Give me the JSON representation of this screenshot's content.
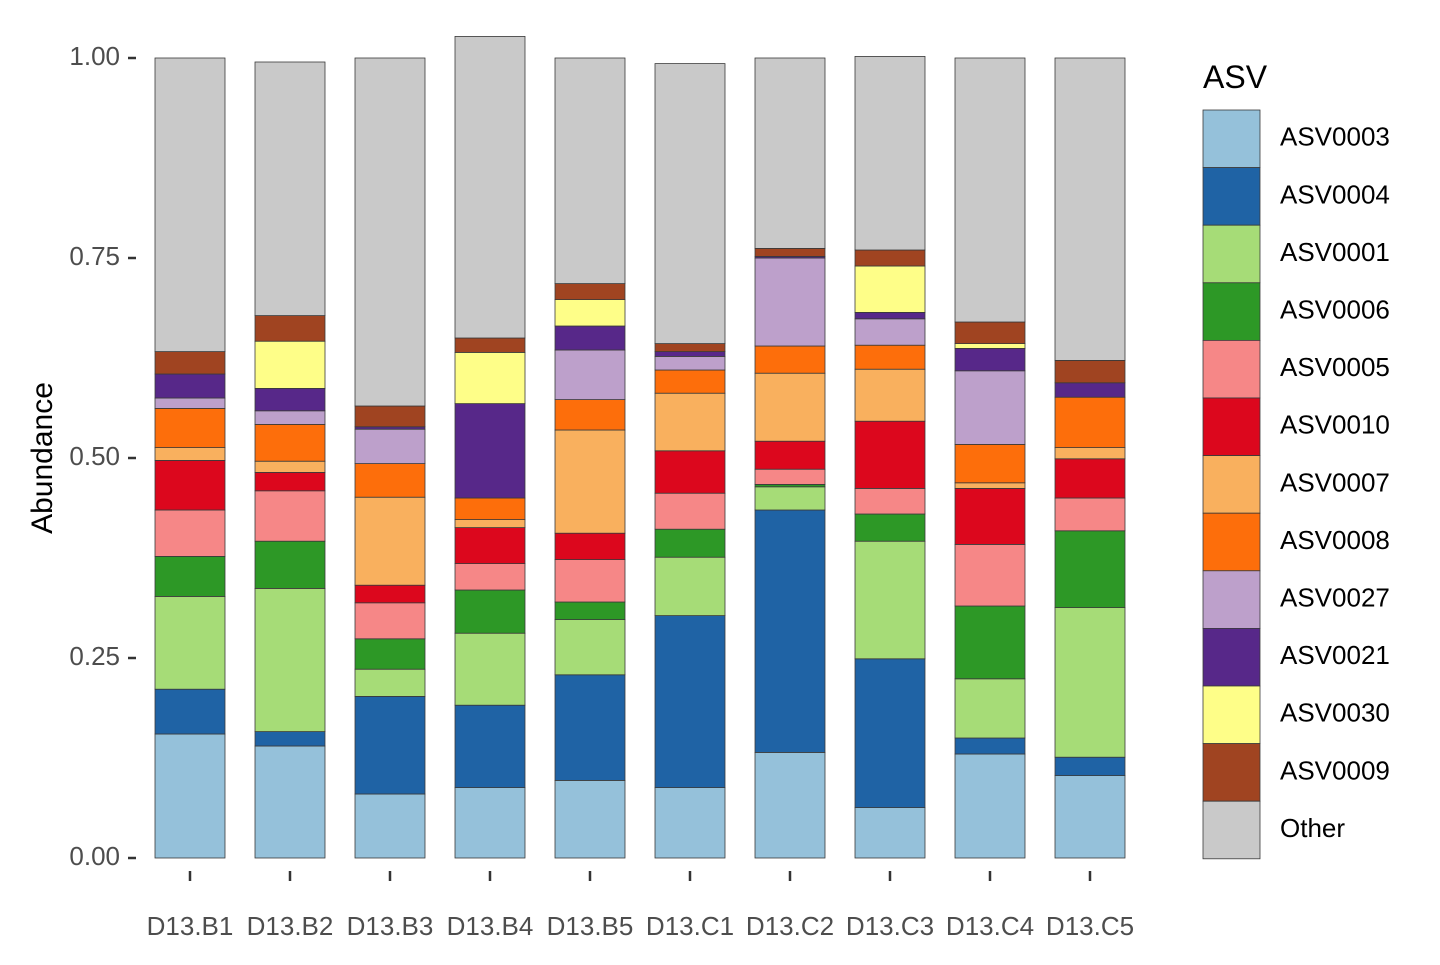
{
  "chart_data": {
    "type": "bar",
    "stacked": true,
    "ylabel": "Abundance",
    "xlabel": "",
    "ylim": [
      0,
      1
    ],
    "yticks": [
      "0.00",
      "0.25",
      "0.50",
      "0.75",
      "1.00"
    ],
    "grid": false,
    "legend_title": "ASV",
    "legend_position": "right",
    "categories": [
      "D13.B1",
      "D13.B2",
      "D13.B3",
      "D13.B4",
      "D13.B5",
      "D13.C1",
      "D13.C2",
      "D13.C3",
      "D13.C4",
      "D13.C5"
    ],
    "series": [
      {
        "name": "ASV0003",
        "color": "#95c1da",
        "values": [
          0.155,
          0.14,
          0.08,
          0.088,
          0.097,
          0.088,
          0.132,
          0.063,
          0.13,
          0.103
        ]
      },
      {
        "name": "ASV0004",
        "color": "#1f63a5",
        "values": [
          0.056,
          0.018,
          0.122,
          0.103,
          0.132,
          0.215,
          0.303,
          0.186,
          0.02,
          0.023
        ]
      },
      {
        "name": "ASV0001",
        "color": "#a6dc77",
        "values": [
          0.116,
          0.179,
          0.034,
          0.09,
          0.069,
          0.073,
          0.029,
          0.147,
          0.074,
          0.187
        ]
      },
      {
        "name": "ASV0006",
        "color": "#2d9826",
        "values": [
          0.05,
          0.059,
          0.038,
          0.054,
          0.022,
          0.035,
          0.003,
          0.034,
          0.091,
          0.096
        ]
      },
      {
        "name": "ASV0005",
        "color": "#f68787",
        "values": [
          0.058,
          0.063,
          0.045,
          0.033,
          0.053,
          0.045,
          0.019,
          0.032,
          0.077,
          0.041
        ]
      },
      {
        "name": "ASV0010",
        "color": "#dc071d",
        "values": [
          0.062,
          0.023,
          0.022,
          0.045,
          0.033,
          0.053,
          0.035,
          0.084,
          0.07,
          0.049
        ]
      },
      {
        "name": "ASV0007",
        "color": "#f9b05e",
        "values": [
          0.016,
          0.014,
          0.11,
          0.01,
          0.129,
          0.072,
          0.085,
          0.065,
          0.007,
          0.014
        ]
      },
      {
        "name": "ASV0008",
        "color": "#fd6e0b",
        "values": [
          0.049,
          0.046,
          0.042,
          0.027,
          0.038,
          0.029,
          0.034,
          0.03,
          0.048,
          0.063
        ]
      },
      {
        "name": "ASV0027",
        "color": "#bda0cb",
        "values": [
          0.013,
          0.017,
          0.043,
          0.0,
          0.062,
          0.017,
          0.11,
          0.033,
          0.092,
          0.0
        ]
      },
      {
        "name": "ASV0021",
        "color": "#572889",
        "values": [
          0.03,
          0.028,
          0.003,
          0.118,
          0.03,
          0.006,
          0.002,
          0.008,
          0.028,
          0.018
        ]
      },
      {
        "name": "ASV0030",
        "color": "#fefe88",
        "values": [
          0.0,
          0.059,
          0.0,
          0.064,
          0.033,
          0.0,
          0.0,
          0.058,
          0.006,
          0.0
        ]
      },
      {
        "name": "ASV0009",
        "color": "#a04421",
        "values": [
          0.028,
          0.032,
          0.026,
          0.018,
          0.02,
          0.01,
          0.01,
          0.02,
          0.027,
          0.028
        ]
      },
      {
        "name": "Other",
        "color": "#c9c9c9",
        "values": [
          0.367,
          0.317,
          0.435,
          0.377,
          0.282,
          0.35,
          0.238,
          0.242,
          0.33,
          0.378
        ]
      }
    ]
  }
}
